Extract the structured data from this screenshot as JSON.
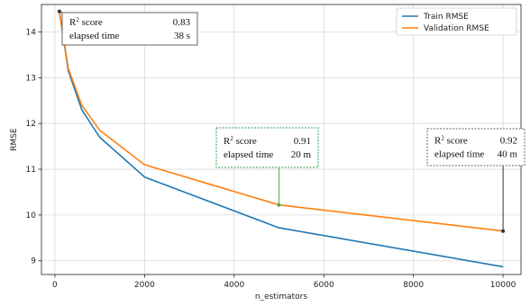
{
  "chart_data": {
    "type": "line",
    "xlabel": "n_estimators",
    "ylabel": "RMSE",
    "xlim": [
      -300,
      10400
    ],
    "ylim": [
      8.7,
      14.6
    ],
    "xticks": [
      0,
      2000,
      4000,
      6000,
      8000,
      10000
    ],
    "yticks": [
      9,
      10,
      11,
      12,
      13,
      14
    ],
    "grid": true,
    "legend_position": "top-right",
    "series": [
      {
        "name": "Train RMSE",
        "color": "#1f77b4",
        "x": [
          100,
          300,
          600,
          1000,
          2000,
          5000,
          10000
        ],
        "values": [
          14.45,
          13.15,
          12.3,
          11.7,
          10.83,
          9.72,
          8.87
        ]
      },
      {
        "name": "Validation RMSE",
        "color": "#ff7f0e",
        "x": [
          100,
          300,
          600,
          1000,
          2000,
          5000,
          10000
        ],
        "values": [
          14.45,
          13.2,
          12.4,
          11.85,
          11.1,
          10.22,
          9.65
        ]
      }
    ],
    "annotations": [
      {
        "point": [
          100,
          14.45
        ],
        "arrow_color": "#333333",
        "box_border": "#666666",
        "rows": [
          {
            "label": "score",
            "value": "0.83"
          },
          {
            "label": "elapsed time",
            "value": "38 s"
          }
        ]
      },
      {
        "point": [
          5000,
          10.22
        ],
        "arrow_color": "#4caf50",
        "box_border": "#2e9e4f",
        "rows": [
          {
            "label": "score",
            "value": "0.91"
          },
          {
            "label": "elapsed time",
            "value": "20 m"
          }
        ]
      },
      {
        "point": [
          10000,
          9.65
        ],
        "arrow_color": "#333333",
        "box_border": "#666666",
        "rows": [
          {
            "label": "score",
            "value": "0.92"
          },
          {
            "label": "elapsed time",
            "value": "40 m"
          }
        ]
      }
    ]
  }
}
